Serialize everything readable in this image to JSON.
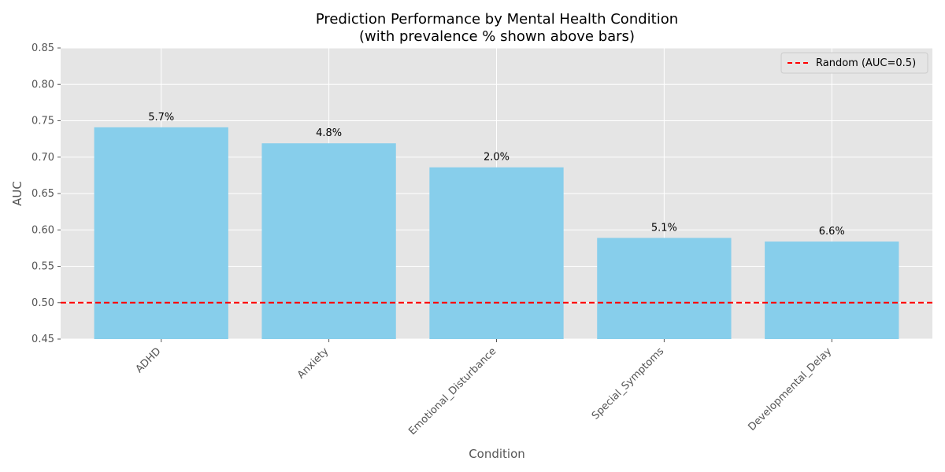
{
  "chart_data": {
    "type": "bar",
    "title": "Prediction Performance by Mental Health Condition",
    "subtitle": "(with prevalence % shown above bars)",
    "xlabel": "Condition",
    "ylabel": "AUC",
    "categories": [
      "ADHD",
      "Anxiety",
      "Emotional_Disturbance",
      "Special_Symptoms",
      "Developmental_Delay"
    ],
    "values": [
      0.741,
      0.719,
      0.686,
      0.589,
      0.584
    ],
    "bar_labels": [
      "5.7%",
      "4.8%",
      "2.0%",
      "5.1%",
      "6.6%"
    ],
    "ylim": [
      0.45,
      0.85
    ],
    "yticks": [
      0.45,
      0.5,
      0.55,
      0.6,
      0.65,
      0.7,
      0.75,
      0.8,
      0.85
    ],
    "ytick_labels": [
      "0.45",
      "0.50",
      "0.55",
      "0.60",
      "0.65",
      "0.70",
      "0.75",
      "0.80",
      "0.85"
    ],
    "reference_line": {
      "value": 0.5,
      "label": "Random (AUC=0.5)",
      "color": "#ff0000",
      "style": "dashed"
    },
    "bar_color": "#87ceeb",
    "background_color": "#e5e5e5",
    "grid": true,
    "legend_position": "top-right"
  }
}
